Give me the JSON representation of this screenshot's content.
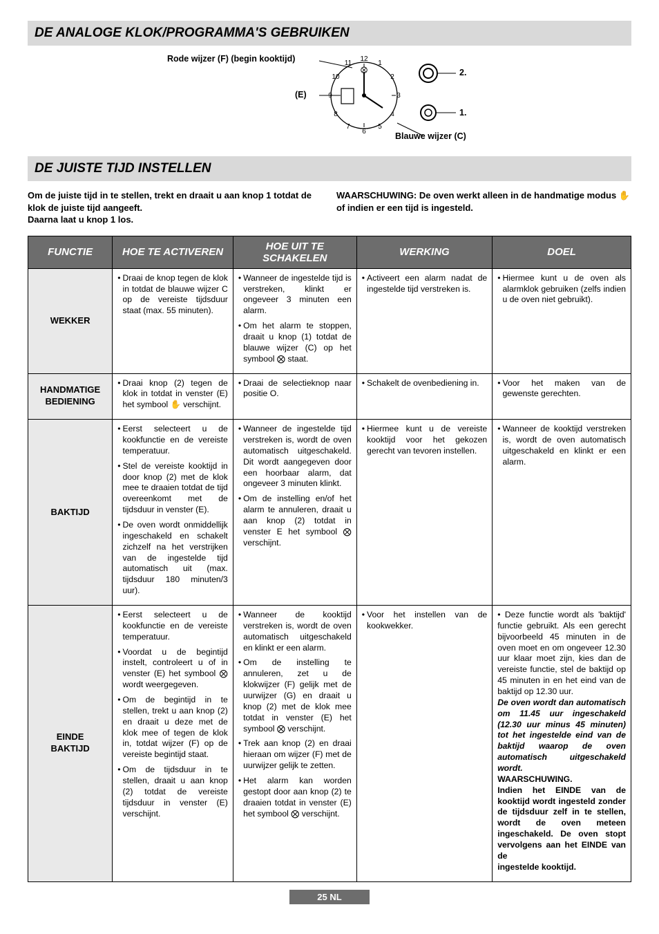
{
  "header1": "DE ANALOGE KLOK/PROGRAMMA'S GEBRUIKEN",
  "diagram": {
    "label_rode": "Rode wijzer (F) (begin kooktijd)",
    "label_e": "(E)",
    "label_2": "2.",
    "label_1": "1.",
    "label_blauwe": "Blauwe wijzer (C)",
    "clock_numbers": [
      "12",
      "1",
      "2",
      "3",
      "4",
      "5",
      "6",
      "7",
      "8",
      "9",
      "10",
      "11"
    ]
  },
  "header2": "DE JUISTE TIJD INSTELLEN",
  "instr_left_1": "Om de juiste tijd in te stellen, trekt en draait u aan knop 1 totdat de klok de juiste tijd aangeeft.",
  "instr_left_2": "Daarna laat u knop 1 los.",
  "instr_right_1": "WAARSCHUWING: De oven werkt alleen in de handmatige modus",
  "instr_right_2": "of indien er een tijd is ingesteld.",
  "table": {
    "headers": [
      "FUNCTIE",
      "HOE TE ACTIVEREN",
      "HOE UIT TE SCHAKELEN",
      "WERKING",
      "DOEL"
    ],
    "col_widths": [
      "14%",
      "20%",
      "20.5%",
      "22.5%",
      "23%"
    ],
    "rows": [
      {
        "name": "WEKKER",
        "activate": [
          "Draai de knop tegen de klok in totdat de blauwe wijzer C op de vereiste tijdsduur staat (max. 55 minuten)."
        ],
        "deactivate": [
          "Wanneer de ingestelde tijd is verstreken, klinkt er ongeveer 3 minuten een alarm.",
          "Om het alarm te stoppen, draait u knop (1) totdat de blauwe wijzer (C) op het symbool ⨂ staat."
        ],
        "working": [
          "Activeert een alarm nadat de ingestelde tijd verstreken is."
        ],
        "purpose": [
          "Hiermee kunt u de oven als alarmklok gebruiken (zelfs indien u de oven niet gebruikt)."
        ]
      },
      {
        "name": "HANDMATIGE BEDIENING",
        "activate": [
          "Draai knop (2) tegen de klok in totdat in venster (E) het symbool ✋ verschijnt."
        ],
        "deactivate": [
          "Draai de selectieknop naar positie O."
        ],
        "working": [
          "Schakelt de ovenbediening in."
        ],
        "purpose": [
          "Voor het maken van de gewenste gerechten."
        ]
      },
      {
        "name": "BAKTIJD",
        "activate": [
          "Eerst selecteert u de kookfunctie en de vereiste temperatuur.",
          "Stel de vereiste kooktijd in door knop (2) met de klok mee te draaien totdat de tijd overeenkomt met de tijdsduur in venster (E).",
          "De oven wordt onmiddellijk ingeschakeld en schakelt zichzelf na het verstrijken van de ingestelde tijd automatisch uit (max. tijdsduur 180 minuten/3 uur)."
        ],
        "deactivate": [
          "Wanneer de ingestelde tijd verstreken is, wordt de oven automatisch uitgeschakeld. Dit wordt aangegeven door een hoorbaar alarm, dat ongeveer 3 minuten klinkt.",
          "Om de instelling en/of het alarm te annuleren, draait u aan knop (2) totdat in venster E het symbool ⨂ verschijnt."
        ],
        "working": [
          "Hiermee kunt u de vereiste kooktijd voor het gekozen gerecht van tevoren instellen."
        ],
        "purpose": [
          "Wanneer de kooktijd verstreken is, wordt de oven automatisch uitgeschakeld en klinkt er een alarm."
        ]
      },
      {
        "name": "EINDE BAKTIJD",
        "activate": [
          "Eerst selecteert u de kookfunctie en de vereiste temperatuur.",
          "Voordat u de begintijd instelt, controleert u of in venster (E) het symbool ⨂ wordt weergegeven.",
          "Om de begintijd in te stellen, trekt u aan knop (2) en draait u deze met de klok mee of tegen de klok in, totdat wijzer (F) op de vereiste begintijd staat.",
          "Om de tijdsduur in te stellen, draait u aan knop (2) totdat de vereiste tijdsduur in venster (E) verschijnt."
        ],
        "deactivate": [
          "Wanneer de kooktijd verstreken is, wordt de oven automatisch uitgeschakeld en klinkt er een alarm.",
          "Om de instelling te annuleren, zet u de klokwijzer (F) gelijk met de uurwijzer (G) en draait u knop (2) met de klok mee totdat in venster (E) het symbool ⨂ verschijnt.",
          "Trek aan knop (2) en draai hieraan om wijzer (F) met de uurwijzer gelijk te zetten.",
          "Het alarm kan worden gestopt door aan knop (2) te draaien totdat in venster (E) het symbool ⨂ verschijnt."
        ],
        "working": [
          "Voor het instellen van de kookwekker."
        ],
        "purpose_html": "• Deze functie wordt als 'baktijd' functie gebruikt. Als een gerecht bijvoorbeeld 45 minuten in de oven moet en om ongeveer 12.30 uur klaar moet zijn, kies dan de vereiste functie, stel de baktijd op 45 minuten in en het eind van de baktijd op 12.30 uur.<br><b><i>De oven wordt dan automatisch om 11.45 uur ingeschakeld (12.30 uur minus 45 minuten) tot het ingestelde eind van de baktijd waarop de oven automatisch uitgeschakeld wordt.</i></b><br><b>WAARSCHUWING.</b><br><b>Indien het EINDE van de kooktijd wordt ingesteld zonder de tijdsduur zelf in te stellen, wordt de oven meteen ingeschakeld. De oven stopt vervolgens aan het EINDE van de</b><br><b>ingestelde kooktijd.</b>"
      }
    ]
  },
  "footer": "25 NL"
}
